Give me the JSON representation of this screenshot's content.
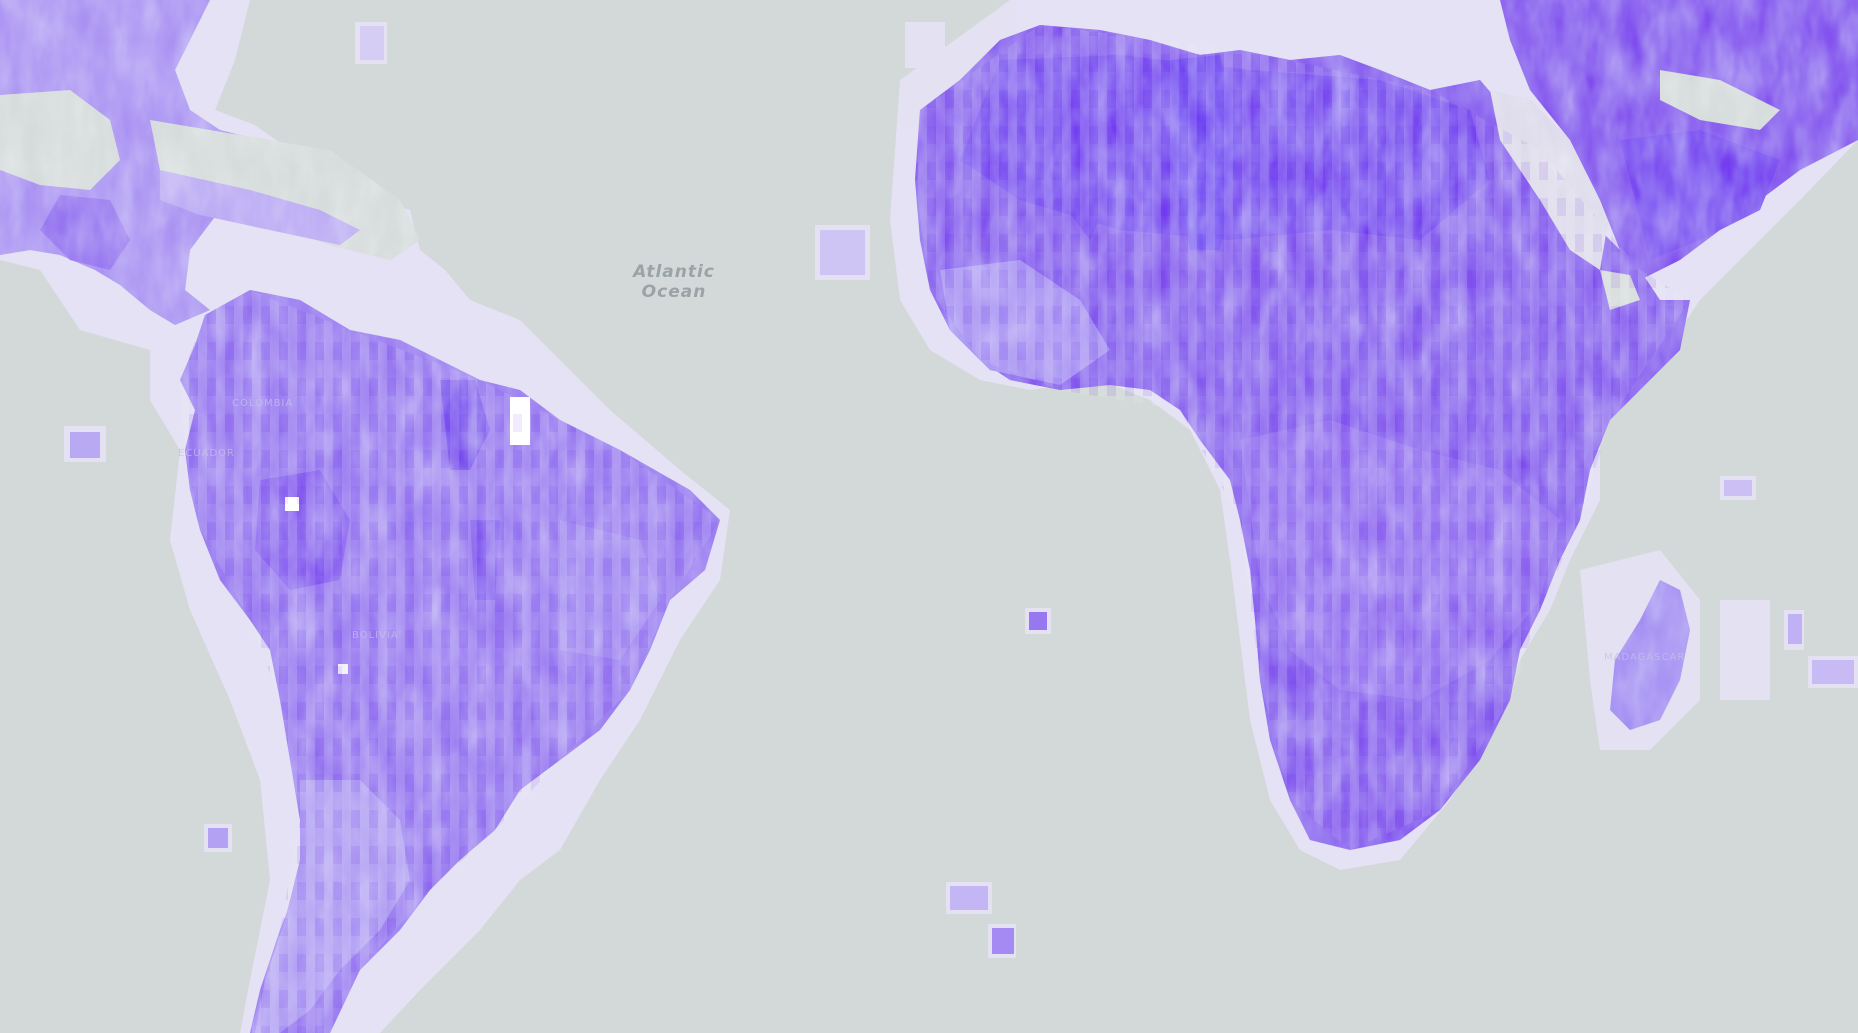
{
  "map": {
    "ocean_label": "Atlantic\nOcean",
    "colors": {
      "ocean": "#d3d9d9",
      "data_dark": "#6a14f0",
      "data_mid": "#8a5cf0",
      "data_light": "#b4a3f2",
      "data_pale": "#e4e0f5"
    },
    "country_labels": [
      "COLOMBIA",
      "ECUADOR",
      "BOLIVIA",
      "MADAGASCAR"
    ]
  }
}
